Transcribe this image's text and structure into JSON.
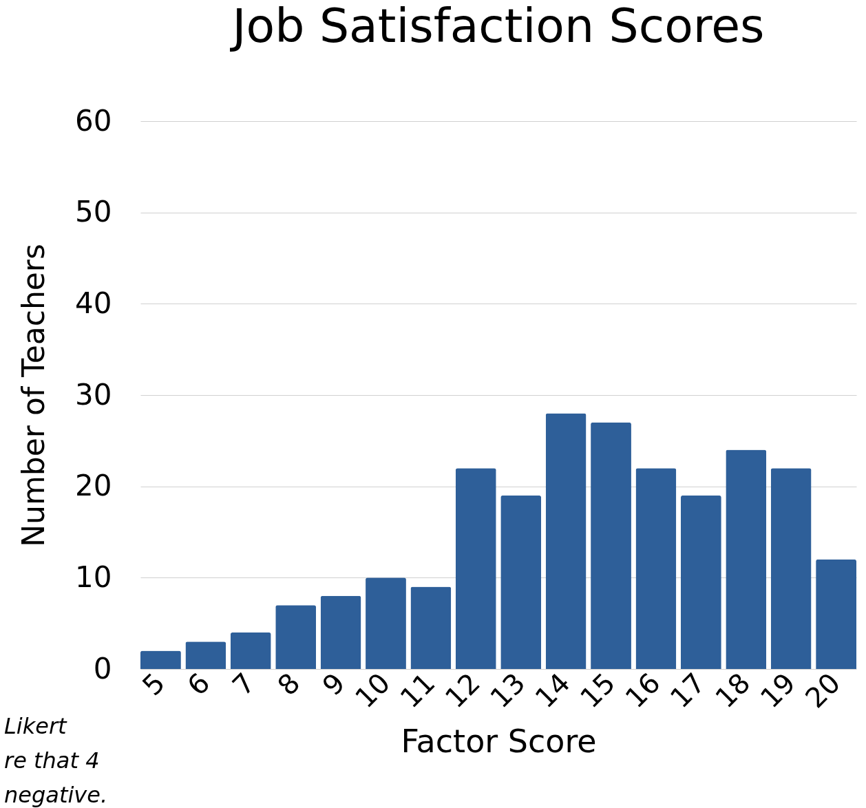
{
  "chart_data": {
    "type": "bar",
    "title": "Job Satisfaction Scores",
    "xlabel": "Factor Score",
    "ylabel": "Number of Teachers",
    "categories": [
      "5",
      "6",
      "7",
      "8",
      "9",
      "10",
      "11",
      "12",
      "13",
      "14",
      "15",
      "16",
      "17",
      "18",
      "19",
      "20"
    ],
    "values": [
      2,
      3,
      4,
      7,
      8,
      10,
      9,
      22,
      19,
      28,
      27,
      22,
      19,
      24,
      22,
      12
    ],
    "color": "#2e5f99",
    "ylim": [
      0,
      60
    ],
    "yticks": [
      0,
      10,
      20,
      30,
      40,
      50,
      60
    ],
    "grid": "y",
    "annotations": [
      "Likert",
      "re that 4",
      "negative."
    ]
  }
}
